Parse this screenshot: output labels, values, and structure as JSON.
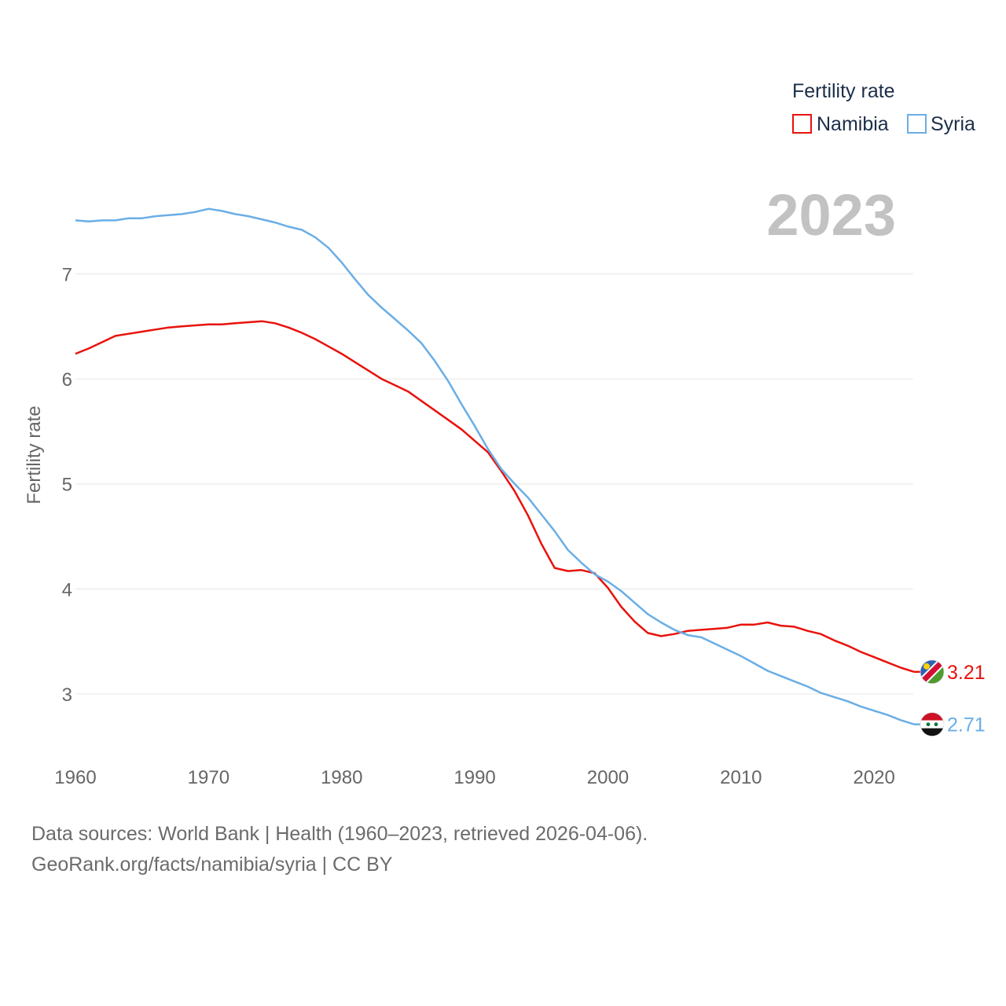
{
  "chart_data": {
    "type": "line",
    "ylabel": "Fertility rate",
    "legend": {
      "title": "Fertility rate",
      "placement": "top-right"
    },
    "year_overlay": "2023",
    "xlim": [
      1960,
      2023
    ],
    "ylim": [
      2.55,
      7.85
    ],
    "x_ticks": [
      1960,
      1970,
      1980,
      1990,
      2000,
      2010,
      2020
    ],
    "y_ticks": [
      3,
      4,
      5,
      6,
      7
    ],
    "grid": true,
    "x": [
      1960,
      1961,
      1962,
      1963,
      1964,
      1965,
      1966,
      1967,
      1968,
      1969,
      1970,
      1971,
      1972,
      1973,
      1974,
      1975,
      1976,
      1977,
      1978,
      1979,
      1980,
      1981,
      1982,
      1983,
      1984,
      1985,
      1986,
      1987,
      1988,
      1989,
      1990,
      1991,
      1992,
      1993,
      1994,
      1995,
      1996,
      1997,
      1998,
      1999,
      2000,
      2001,
      2002,
      2003,
      2004,
      2005,
      2006,
      2007,
      2008,
      2009,
      2010,
      2011,
      2012,
      2013,
      2014,
      2015,
      2016,
      2017,
      2018,
      2019,
      2020,
      2021,
      2022,
      2023
    ],
    "series": [
      {
        "name": "Namibia",
        "color": "#e8120c",
        "end_label": "3.21",
        "flag": "namibia-flag",
        "values": [
          6.24,
          6.29,
          6.35,
          6.41,
          6.43,
          6.45,
          6.47,
          6.49,
          6.5,
          6.51,
          6.52,
          6.52,
          6.53,
          6.54,
          6.55,
          6.53,
          6.49,
          6.44,
          6.38,
          6.31,
          6.24,
          6.16,
          6.08,
          6.0,
          5.94,
          5.88,
          5.79,
          5.7,
          5.61,
          5.52,
          5.41,
          5.3,
          5.12,
          4.93,
          4.7,
          4.43,
          4.2,
          4.17,
          4.18,
          4.15,
          4.01,
          3.83,
          3.69,
          3.58,
          3.55,
          3.57,
          3.6,
          3.61,
          3.62,
          3.63,
          3.66,
          3.66,
          3.68,
          3.65,
          3.64,
          3.6,
          3.57,
          3.51,
          3.46,
          3.4,
          3.35,
          3.3,
          3.25,
          3.21
        ]
      },
      {
        "name": "Syria",
        "color": "#6aaee6",
        "end_label": "2.71",
        "flag": "syria-flag",
        "values": [
          7.51,
          7.5,
          7.51,
          7.51,
          7.53,
          7.53,
          7.55,
          7.56,
          7.57,
          7.59,
          7.62,
          7.6,
          7.57,
          7.55,
          7.52,
          7.49,
          7.45,
          7.42,
          7.35,
          7.25,
          7.11,
          6.95,
          6.8,
          6.68,
          6.57,
          6.46,
          6.34,
          6.17,
          5.98,
          5.76,
          5.55,
          5.33,
          5.14,
          5.0,
          4.87,
          4.71,
          4.55,
          4.37,
          4.25,
          4.14,
          4.07,
          3.98,
          3.87,
          3.76,
          3.68,
          3.61,
          3.56,
          3.54,
          3.48,
          3.42,
          3.36,
          3.29,
          3.22,
          3.17,
          3.12,
          3.07,
          3.01,
          2.97,
          2.93,
          2.88,
          2.84,
          2.8,
          2.75,
          2.71
        ]
      }
    ]
  },
  "footer": {
    "source": "Data sources: World Bank | Health (1960–2023, retrieved 2026-04-06).",
    "credit": "GeoRank.org/facts/namibia/syria | CC BY"
  }
}
